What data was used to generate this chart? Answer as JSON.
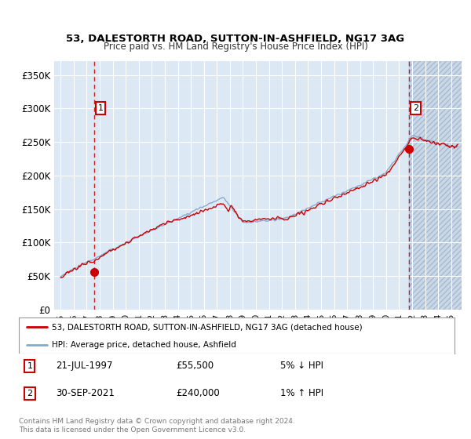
{
  "title": "53, DALESTORTH ROAD, SUTTON-IN-ASHFIELD, NG17 3AG",
  "subtitle": "Price paid vs. HM Land Registry's House Price Index (HPI)",
  "ylim": [
    0,
    370000
  ],
  "yticks": [
    0,
    50000,
    100000,
    150000,
    200000,
    250000,
    300000,
    350000
  ],
  "ytick_labels": [
    "£0",
    "£50K",
    "£100K",
    "£150K",
    "£200K",
    "£250K",
    "£300K",
    "£350K"
  ],
  "xlim_start": 1994.5,
  "xlim_end": 2025.8,
  "bg_color": "#dce9f5",
  "fig_bg_color": "#ffffff",
  "grid_color": "#ffffff",
  "red_line_color": "#cc0000",
  "blue_line_color": "#88aacc",
  "marker_color": "#cc0000",
  "dashed_line_color": "#cc0000",
  "annotation_box_color": "#cc0000",
  "point1_x": 1997.55,
  "point1_y": 55500,
  "point2_x": 2021.75,
  "point2_y": 240000,
  "hatch_start": 2021.75,
  "legend_label1": "53, DALESTORTH ROAD, SUTTON-IN-ASHFIELD, NG17 3AG (detached house)",
  "legend_label2": "HPI: Average price, detached house, Ashfield",
  "table_row1": [
    "1",
    "21-JUL-1997",
    "£55,500",
    "5% ↓ HPI"
  ],
  "table_row2": [
    "2",
    "30-SEP-2021",
    "£240,000",
    "1% ↑ HPI"
  ],
  "footnote": "Contains HM Land Registry data © Crown copyright and database right 2024.\nThis data is licensed under the Open Government Licence v3.0."
}
